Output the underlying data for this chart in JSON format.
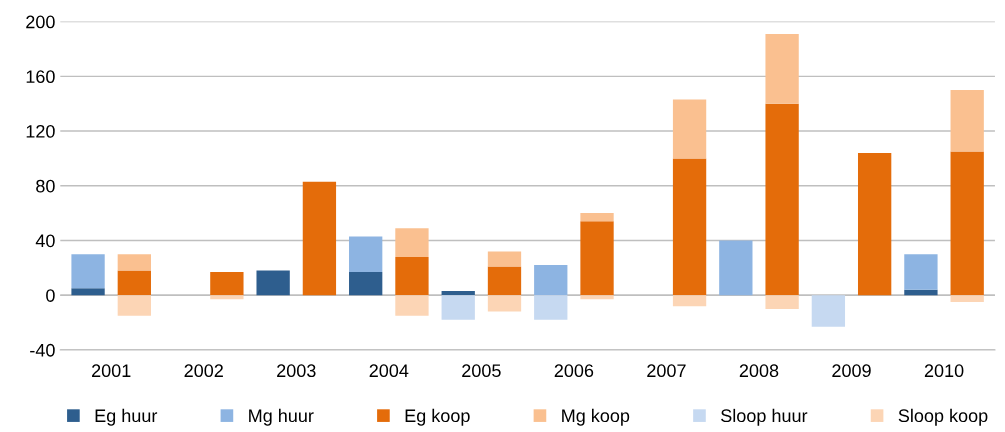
{
  "chart_data": {
    "type": "bar",
    "stacked": true,
    "categories": [
      "2001",
      null,
      "2002",
      null,
      "2003",
      null,
      "2004",
      null,
      "2005",
      null,
      "2006",
      null,
      "2007",
      null,
      "2008",
      null,
      "2009",
      null,
      "2010",
      null
    ],
    "series": [
      {
        "name": "Eg huur",
        "color": "#2e5e8e",
        "values": [
          5,
          null,
          0,
          null,
          18,
          null,
          17,
          null,
          3,
          null,
          0,
          null,
          0,
          null,
          0,
          null,
          0,
          null,
          4,
          null
        ]
      },
      {
        "name": "Mg huur",
        "color": "#8db4e2",
        "values": [
          25,
          null,
          0,
          null,
          0,
          null,
          26,
          null,
          0,
          null,
          22,
          null,
          0,
          null,
          40,
          null,
          0,
          null,
          26,
          null
        ]
      },
      {
        "name": "Eg koop",
        "color": "#e46c0a",
        "values": [
          null,
          18,
          null,
          17,
          null,
          83,
          null,
          28,
          null,
          21,
          null,
          54,
          null,
          100,
          null,
          140,
          null,
          104,
          null,
          105
        ]
      },
      {
        "name": "Mg koop",
        "color": "#fac090",
        "values": [
          null,
          12,
          null,
          0,
          null,
          0,
          null,
          21,
          null,
          11,
          null,
          6,
          null,
          43,
          null,
          51,
          null,
          0,
          null,
          45
        ]
      },
      {
        "name": "Sloop huur",
        "color": "#c6d9f1",
        "values": [
          0,
          null,
          0,
          null,
          0,
          null,
          0,
          null,
          -18,
          null,
          -18,
          null,
          0,
          null,
          0,
          null,
          -23,
          null,
          0,
          null
        ]
      },
      {
        "name": "Sloop koop",
        "color": "#fcd5b5",
        "values": [
          null,
          -15,
          null,
          -3,
          null,
          0,
          null,
          -15,
          null,
          -12,
          null,
          -3,
          null,
          -8,
          null,
          -10,
          null,
          0,
          null,
          -5
        ]
      }
    ],
    "ylim": [
      -40,
      200
    ],
    "yticks": [
      -40,
      0,
      40,
      80,
      120,
      160,
      200
    ],
    "grid": "y",
    "legend": "bottom"
  }
}
